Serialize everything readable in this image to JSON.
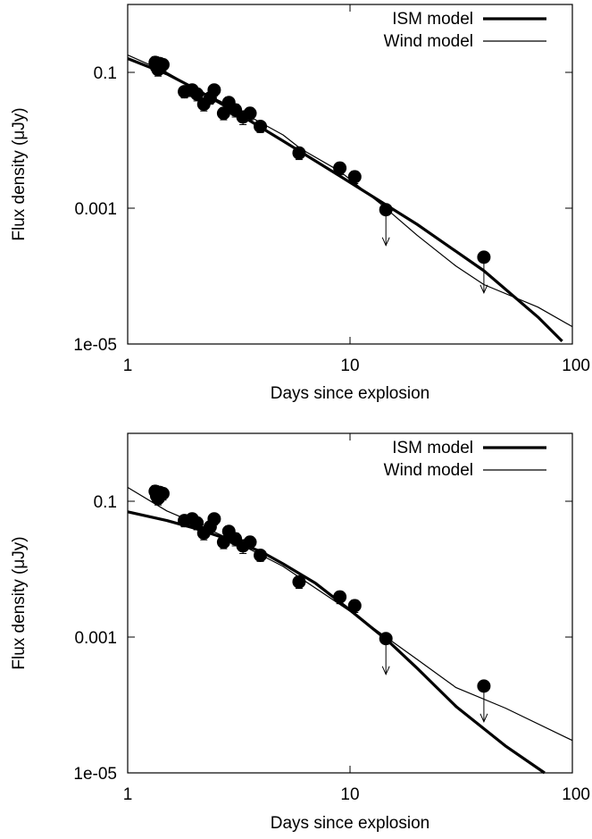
{
  "chart_data": [
    {
      "type": "scatter",
      "xlabel": "Days since explosion",
      "ylabel": "Flux density (μJy)",
      "xscale": "log",
      "yscale": "log",
      "xlim": [
        1,
        100
      ],
      "ylim": [
        1e-05,
        1
      ],
      "xticks": [
        1,
        10,
        100
      ],
      "xtick_labels": [
        "1",
        "10",
        "100"
      ],
      "yticks": [
        1e-05,
        0.001,
        0.1
      ],
      "ytick_labels": [
        "1e-05",
        "0.001",
        "0.1"
      ],
      "grid": false,
      "legend_position": "top-right",
      "data_points": {
        "x": [
          1.33,
          1.35,
          1.37,
          1.39,
          1.41,
          1.44,
          1.8,
          1.95,
          2.05,
          2.2,
          2.35,
          2.45,
          2.7,
          2.85,
          3.05,
          3.3,
          3.55,
          3.95,
          5.9,
          9.0,
          10.5
        ],
        "y": [
          0.14,
          0.12,
          0.11,
          0.135,
          0.125,
          0.13,
          0.052,
          0.055,
          0.048,
          0.034,
          0.042,
          0.055,
          0.025,
          0.036,
          0.028,
          0.022,
          0.025,
          0.016,
          0.0065,
          0.0039,
          0.0029
        ],
        "err": [
          0.03,
          0.025,
          0.022,
          0.028,
          0.025,
          0.026,
          0.01,
          0.011,
          0.01,
          0.007,
          0.008,
          0.01,
          0.005,
          0.007,
          0.006,
          0.005,
          0.005,
          0.003,
          0.0013,
          0.0008,
          0.0006
        ]
      },
      "upper_limits": {
        "x": [
          14.5,
          40
        ],
        "y": [
          0.00095,
          0.00019
        ]
      },
      "series": [
        {
          "name": "ISM model",
          "style": "thick",
          "x": [
            1,
            1.5,
            2,
            3,
            5,
            10,
            20,
            40,
            70,
            90
          ],
          "y": [
            0.16,
            0.095,
            0.058,
            0.027,
            0.0098,
            0.0024,
            0.00058,
            0.00012,
            2.5e-05,
            1.1e-05
          ]
        },
        {
          "name": "Wind model",
          "style": "thin",
          "x": [
            1,
            1.5,
            2,
            3,
            5,
            6,
            9,
            14,
            20,
            30,
            40,
            70,
            100
          ],
          "y": [
            0.18,
            0.1,
            0.058,
            0.03,
            0.012,
            0.0075,
            0.0035,
            0.0011,
            0.0004,
            0.00014,
            7.5e-05,
            3.5e-05,
            1.8e-05
          ]
        }
      ]
    },
    {
      "type": "scatter",
      "xlabel": "Days since explosion",
      "ylabel": "Flux density (μJy)",
      "xscale": "log",
      "yscale": "log",
      "xlim": [
        1,
        100
      ],
      "ylim": [
        1e-05,
        1
      ],
      "xticks": [
        1,
        10,
        100
      ],
      "xtick_labels": [
        "1",
        "10",
        "100"
      ],
      "yticks": [
        1e-05,
        0.001,
        0.1
      ],
      "ytick_labels": [
        "1e-05",
        "0.001",
        "0.1"
      ],
      "grid": false,
      "legend_position": "top-right",
      "data_points": {
        "x": [
          1.33,
          1.35,
          1.37,
          1.39,
          1.41,
          1.44,
          1.8,
          1.95,
          2.05,
          2.2,
          2.35,
          2.45,
          2.7,
          2.85,
          3.05,
          3.3,
          3.55,
          3.95,
          5.9,
          9.0,
          10.5
        ],
        "y": [
          0.14,
          0.12,
          0.11,
          0.135,
          0.125,
          0.13,
          0.052,
          0.055,
          0.048,
          0.034,
          0.042,
          0.055,
          0.025,
          0.036,
          0.028,
          0.022,
          0.025,
          0.016,
          0.0065,
          0.0039,
          0.0029
        ],
        "err": [
          0.03,
          0.025,
          0.022,
          0.028,
          0.025,
          0.026,
          0.01,
          0.011,
          0.01,
          0.007,
          0.008,
          0.01,
          0.005,
          0.007,
          0.006,
          0.005,
          0.005,
          0.003,
          0.0013,
          0.0008,
          0.0006
        ]
      },
      "upper_limits": {
        "x": [
          14.5,
          40
        ],
        "y": [
          0.00095,
          0.00019
        ]
      },
      "series": [
        {
          "name": "ISM model",
          "style": "thick",
          "x": [
            1,
            1.5,
            2,
            3,
            4,
            5,
            7,
            10,
            15,
            20,
            30,
            50,
            75
          ],
          "y": [
            0.07,
            0.052,
            0.04,
            0.026,
            0.018,
            0.012,
            0.0062,
            0.0025,
            0.00085,
            0.00035,
            9.5e-05,
            2.5e-05,
            1e-05
          ]
        },
        {
          "name": "Wind model",
          "style": "thin",
          "x": [
            1,
            1.5,
            2,
            3,
            5,
            10,
            20,
            30,
            50,
            100
          ],
          "y": [
            0.16,
            0.072,
            0.048,
            0.026,
            0.011,
            0.0024,
            0.00047,
            0.00018,
            9e-05,
            3e-05
          ]
        }
      ]
    }
  ]
}
